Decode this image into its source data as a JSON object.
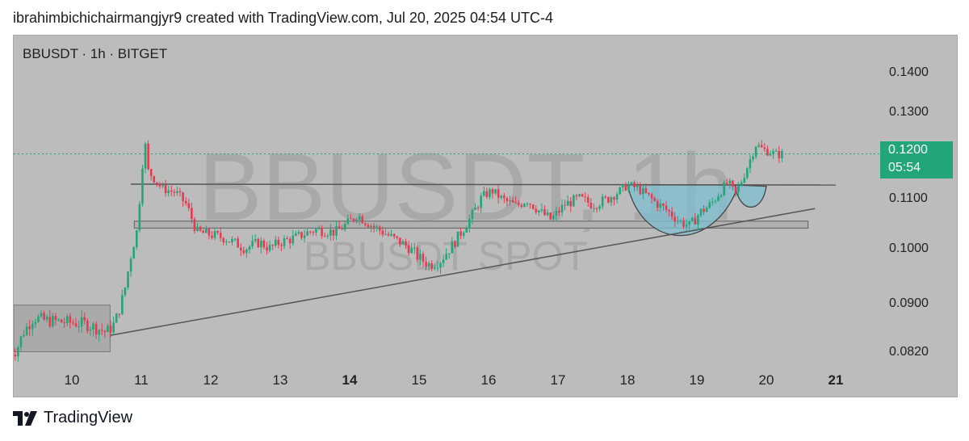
{
  "header": {
    "attribution": "ibrahimbichichairmangjyr9 created with TradingView.com, Jul 20, 2025 04:54 UTC-4"
  },
  "chart_data": {
    "type": "candlestick",
    "legend": "BBUSDT · 1h · BITGET",
    "watermark_line1": "BBUSDT, 1h",
    "watermark_line2": "BBUSDT SPOT",
    "current_price": "0.1200",
    "countdown": "05:54",
    "y_ticks": [
      {
        "label": "0.1400",
        "value": 0.14
      },
      {
        "label": "0.1300",
        "value": 0.13
      },
      {
        "label": "0.1100",
        "value": 0.11
      },
      {
        "label": "0.1000",
        "value": 0.1
      },
      {
        "label": "0.0900",
        "value": 0.09
      },
      {
        "label": "0.0820",
        "value": 0.082
      }
    ],
    "x_ticks": [
      {
        "label": "10",
        "bold": false
      },
      {
        "label": "11",
        "bold": false
      },
      {
        "label": "12",
        "bold": false
      },
      {
        "label": "13",
        "bold": false
      },
      {
        "label": "14",
        "bold": true
      },
      {
        "label": "15",
        "bold": false
      },
      {
        "label": "16",
        "bold": false
      },
      {
        "label": "17",
        "bold": false
      },
      {
        "label": "18",
        "bold": false
      },
      {
        "label": "19",
        "bold": false
      },
      {
        "label": "20",
        "bold": false
      },
      {
        "label": "21",
        "bold": true
      }
    ],
    "price_path": [
      [
        9.1,
        0.0818
      ],
      [
        9.2,
        0.082
      ],
      [
        9.3,
        0.085
      ],
      [
        9.45,
        0.0875
      ],
      [
        9.6,
        0.087
      ],
      [
        9.8,
        0.0868
      ],
      [
        10.0,
        0.0866
      ],
      [
        10.2,
        0.0864
      ],
      [
        10.4,
        0.0855
      ],
      [
        10.5,
        0.085
      ],
      [
        10.62,
        0.0865
      ],
      [
        10.75,
        0.0915
      ],
      [
        10.85,
        0.0985
      ],
      [
        10.95,
        0.104
      ],
      [
        11.0,
        0.115
      ],
      [
        11.05,
        0.123
      ],
      [
        11.1,
        0.116
      ],
      [
        11.3,
        0.112
      ],
      [
        11.5,
        0.111
      ],
      [
        11.65,
        0.1085
      ],
      [
        11.8,
        0.103
      ],
      [
        12.0,
        0.1025
      ],
      [
        12.2,
        0.1018
      ],
      [
        12.5,
        0.0998
      ],
      [
        12.7,
        0.101
      ],
      [
        12.85,
        0.0998
      ],
      [
        13.0,
        0.101
      ],
      [
        13.2,
        0.1018
      ],
      [
        13.5,
        0.1035
      ],
      [
        13.8,
        0.103
      ],
      [
        14.0,
        0.105
      ],
      [
        14.1,
        0.1065
      ],
      [
        14.3,
        0.1045
      ],
      [
        14.6,
        0.102
      ],
      [
        14.85,
        0.1
      ],
      [
        15.0,
        0.098
      ],
      [
        15.15,
        0.0968
      ],
      [
        15.3,
        0.0975
      ],
      [
        15.5,
        0.1008
      ],
      [
        15.75,
        0.106
      ],
      [
        15.9,
        0.11
      ],
      [
        16.05,
        0.1115
      ],
      [
        16.2,
        0.1095
      ],
      [
        16.4,
        0.1082
      ],
      [
        16.55,
        0.1095
      ],
      [
        16.75,
        0.107
      ],
      [
        16.9,
        0.1055
      ],
      [
        17.1,
        0.1085
      ],
      [
        17.3,
        0.1098
      ],
      [
        17.5,
        0.1085
      ],
      [
        17.7,
        0.1095
      ],
      [
        17.9,
        0.1115
      ],
      [
        18.0,
        0.1128
      ],
      [
        18.15,
        0.112
      ],
      [
        18.4,
        0.109
      ],
      [
        18.6,
        0.107
      ],
      [
        18.75,
        0.1052
      ],
      [
        18.9,
        0.1042
      ],
      [
        19.05,
        0.107
      ],
      [
        19.2,
        0.1085
      ],
      [
        19.35,
        0.1115
      ],
      [
        19.45,
        0.1135
      ],
      [
        19.55,
        0.1105
      ],
      [
        19.65,
        0.114
      ],
      [
        19.75,
        0.118
      ],
      [
        19.85,
        0.1222
      ],
      [
        19.95,
        0.121
      ],
      [
        20.05,
        0.1205
      ],
      [
        20.15,
        0.1198
      ],
      [
        20.25,
        0.12
      ]
    ],
    "cup_handle": {
      "cup": [
        [
          18.0,
          0.1128
        ],
        [
          18.4,
          0.1062
        ],
        [
          18.9,
          0.1038
        ],
        [
          19.3,
          0.1085
        ],
        [
          19.6,
          0.1128
        ]
      ],
      "handle": [
        [
          19.55,
          0.1128
        ],
        [
          19.8,
          0.1085
        ],
        [
          20.0,
          0.1125
        ]
      ]
    },
    "resistance_line": [
      [
        10.85,
        0.113
      ],
      [
        21.0,
        0.1128
      ]
    ],
    "support_zone": {
      "x0": 10.9,
      "x1": 20.6,
      "y0": 0.1038,
      "y1": 0.1052
    },
    "trendline": [
      [
        10.55,
        0.0845
      ],
      [
        20.7,
        0.1077
      ]
    ],
    "consolidation_box": {
      "x0": 9.0,
      "x1": 10.55,
      "y0": 0.0818,
      "y1": 0.0895
    },
    "current_price_value": 0.12
  },
  "footer": {
    "brand": "TradingView"
  },
  "colors": {
    "up": "#22a579",
    "down": "#e8394f",
    "line": "#555555",
    "cup": "#7fbfd0"
  }
}
